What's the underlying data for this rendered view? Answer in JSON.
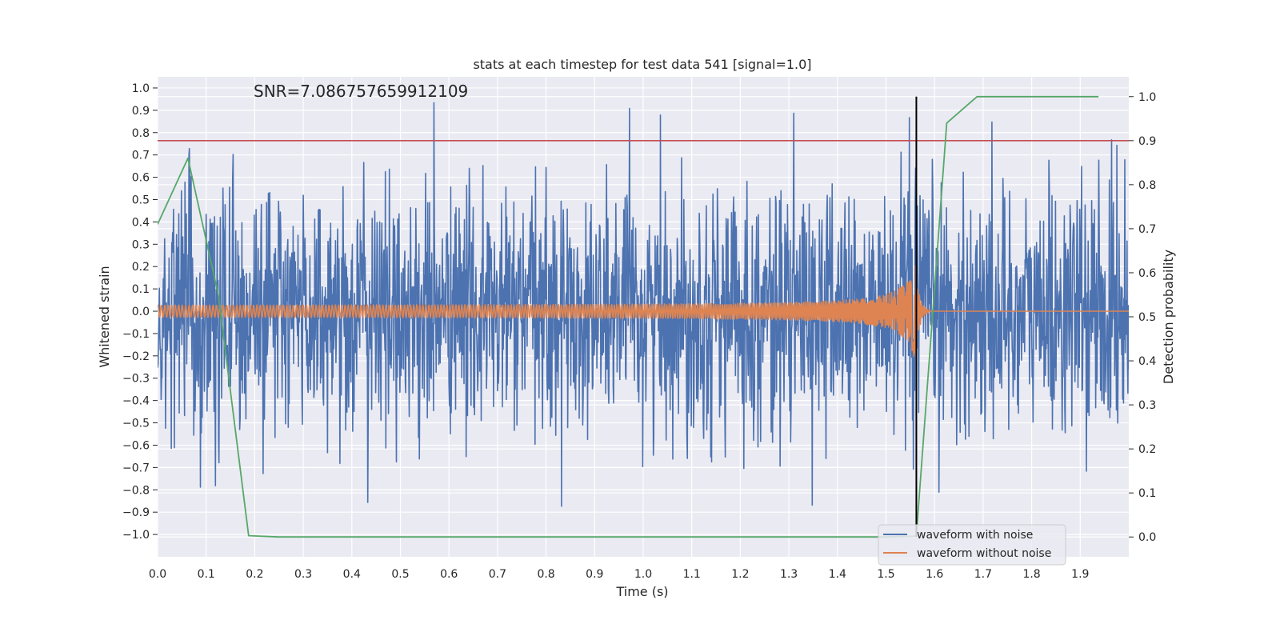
{
  "chart_data": {
    "type": "line",
    "title": "stats at each timestep for test data 541 [signal=1.0]",
    "annotation": "SNR=7.086757659912109",
    "xlabel": "Time (s)",
    "ylabel_left": "Whitened strain",
    "ylabel_right": "Detection probability",
    "xlim": [
      0.0,
      2.0
    ],
    "ylim_left": [
      -1.1,
      1.05
    ],
    "ylim_right": [
      -0.045,
      1.045
    ],
    "x_ticks": [
      "0.0",
      "0.1",
      "0.2",
      "0.3",
      "0.4",
      "0.5",
      "0.6",
      "0.7",
      "0.8",
      "0.9",
      "1.0",
      "1.1",
      "1.2",
      "1.3",
      "1.4",
      "1.5",
      "1.6",
      "1.7",
      "1.8",
      "1.9"
    ],
    "y_left_ticks": [
      "1.0",
      "0.9",
      "0.8",
      "0.7",
      "0.6",
      "0.5",
      "0.4",
      "0.3",
      "0.2",
      "0.1",
      "0.0",
      "−0.1",
      "−0.2",
      "−0.3",
      "−0.4",
      "−0.5",
      "−0.6",
      "−0.7",
      "−0.8",
      "−0.9",
      "−1.0"
    ],
    "y_right_ticks": [
      "0.0",
      "0.1",
      "0.2",
      "0.3",
      "0.4",
      "0.5",
      "0.6",
      "0.7",
      "0.8",
      "0.9",
      "1.0"
    ],
    "colors": {
      "noise": "#4c72b0",
      "clean": "#dd8452",
      "probability": "#55a868",
      "threshold": "#c44e52",
      "merger": "#000000",
      "background": "#eaeaf2",
      "grid": "#ffffff"
    },
    "series": [
      {
        "name": "waveform with noise",
        "axis": "left",
        "description_values": "Gaussian-like whitened noise spanning approximately -1.0 to 0.96 over t = 0 to 2 s"
      },
      {
        "name": "waveform without noise",
        "axis": "left",
        "chirp": {
          "t_merger": 1.56,
          "amplitude_start": 0.025,
          "amplitude_peak": 0.23,
          "post_merger": 0.0
        }
      },
      {
        "name": "detection probability",
        "axis": "right",
        "x": [
          0.0,
          0.0625,
          0.125,
          0.1875,
          0.25,
          0.3125,
          1.5,
          1.5625,
          1.625,
          1.6875,
          1.75,
          1.8125,
          1.875,
          1.9375
        ],
        "y": [
          0.71,
          0.86,
          0.55,
          0.003,
          0.0,
          0.0,
          0.0,
          0.002,
          0.94,
          1.0,
          1.0,
          1.0,
          1.0,
          1.0
        ]
      }
    ],
    "threshold_right": 0.9,
    "merger_time": 1.5625,
    "legend": {
      "position": "lower-right",
      "entries": [
        "waveform with noise",
        "waveform without noise"
      ]
    }
  }
}
